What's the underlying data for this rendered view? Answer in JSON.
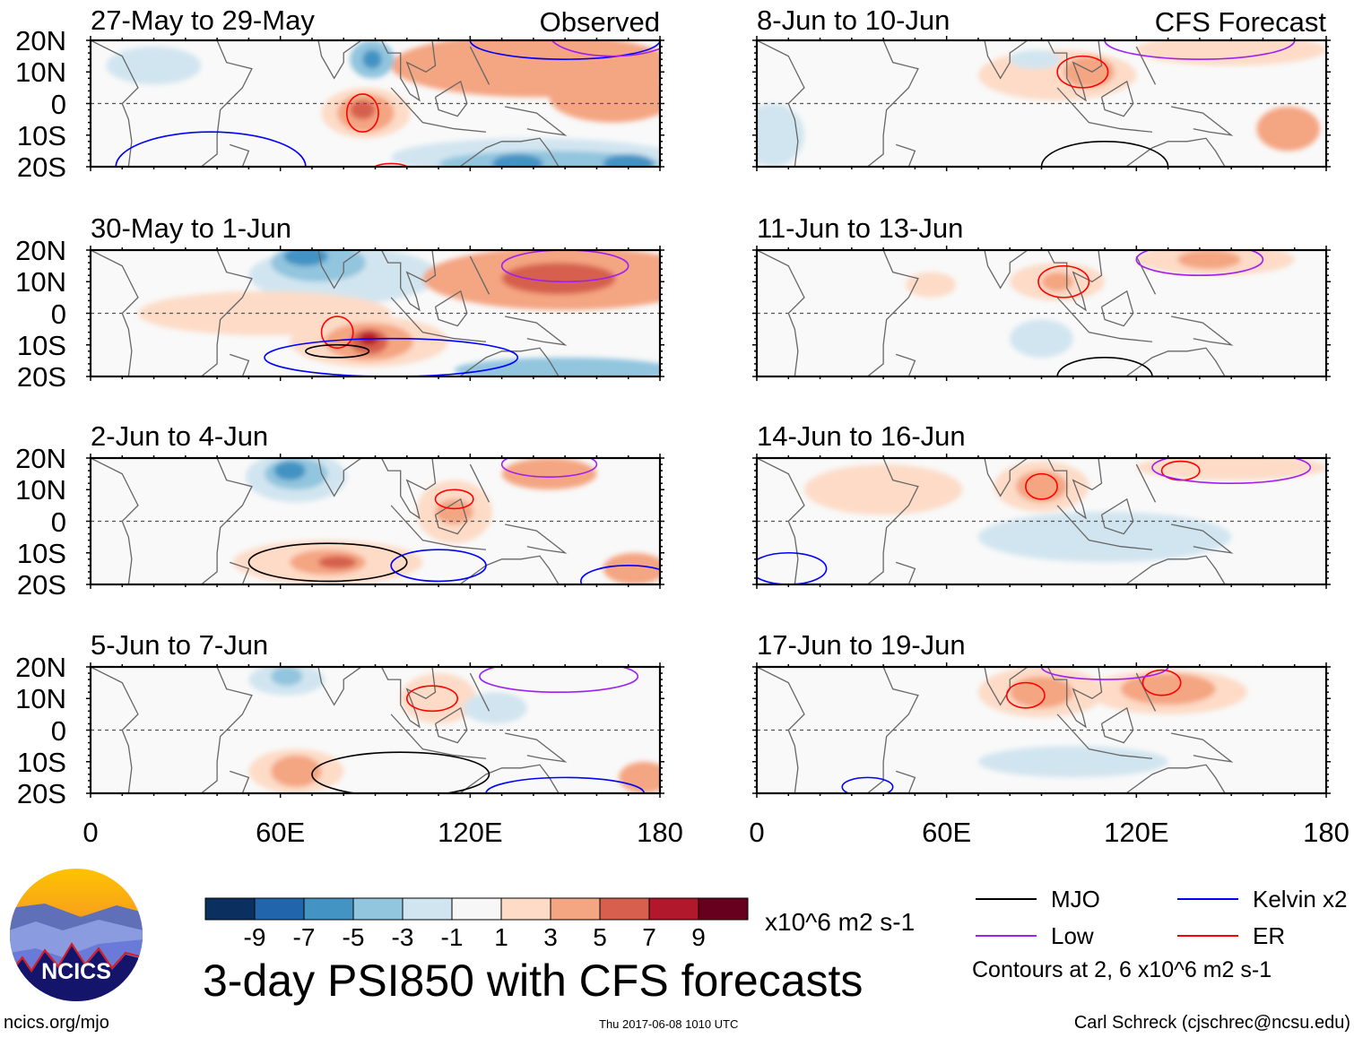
{
  "chart_data": {
    "type": "heatmap",
    "title": "3-day PSI850 with CFS forecasts",
    "units": "x10^6 m2 s-1",
    "lon_range": [
      0,
      180
    ],
    "lat_range": [
      -20,
      20
    ],
    "xticks": [
      "0",
      "60E",
      "120E",
      "180"
    ],
    "yticks": [
      "20N",
      "10N",
      "0",
      "10S",
      "20S"
    ],
    "colorbar": {
      "labels": [
        "-9",
        "-7",
        "-5",
        "-3",
        "-1",
        "1",
        "3",
        "5",
        "7",
        "9"
      ],
      "colors": [
        "#0b2f5e",
        "#2166ac",
        "#4393c3",
        "#92c5de",
        "#d1e5f0",
        "#f7f7f7",
        "#fddbc7",
        "#f4a582",
        "#d6604d",
        "#b2182b",
        "#67001f"
      ]
    },
    "legend": [
      {
        "label": "MJO",
        "color": "#000000"
      },
      {
        "label": "Kelvin x2",
        "color": "#0000ff"
      },
      {
        "label": "Low",
        "color": "#a020f0"
      },
      {
        "label": "ER",
        "color": "#ff0000"
      }
    ],
    "contour_note": "Contours at 2, 6 x10^6 m2 s-1",
    "group_labels": {
      "observed": "Observed",
      "forecast": "CFS Forecast"
    },
    "panels": [
      {
        "title": "27-May to 29-May",
        "group": "observed",
        "anomalies": [
          {
            "lon": 20,
            "lat": 12,
            "rlon": 15,
            "rlat": 6,
            "v": -1
          },
          {
            "lon": 140,
            "lat": 12,
            "rlon": 45,
            "rlat": 10,
            "v": 3
          },
          {
            "lon": 165,
            "lat": 2,
            "rlon": 20,
            "rlat": 8,
            "v": 3
          },
          {
            "lon": 140,
            "lat": -17,
            "rlon": 45,
            "rlat": 6,
            "v": -1
          },
          {
            "lon": 145,
            "lat": -19,
            "rlon": 35,
            "rlat": 4,
            "v": -3
          },
          {
            "lon": 135,
            "lat": -19,
            "rlon": 8,
            "rlat": 3,
            "v": -5
          },
          {
            "lon": 170,
            "lat": -19,
            "rlon": 8,
            "rlat": 3,
            "v": -5
          },
          {
            "lon": 87,
            "lat": -3,
            "rlon": 14,
            "rlat": 8,
            "v": 1
          },
          {
            "lon": 87,
            "lat": -3,
            "rlon": 9,
            "rlat": 6,
            "v": 3
          },
          {
            "lon": 86,
            "lat": -2,
            "rlon": 4,
            "rlat": 3,
            "v": 5
          },
          {
            "lon": 89,
            "lat": 14,
            "rlon": 7,
            "rlat": 6,
            "v": -3
          },
          {
            "lon": 89,
            "lat": 14,
            "rlon": 3,
            "rlat": 3,
            "v": -5
          }
        ],
        "contours": [
          {
            "type": "Kelvin",
            "lon": 38,
            "lat": -20,
            "rlon": 30,
            "rlat": 11
          },
          {
            "type": "ER",
            "lon": 86,
            "lat": -3,
            "rlon": 5,
            "rlat": 6
          },
          {
            "type": "Kelvin",
            "lon": 150,
            "lat": 20,
            "rlon": 30,
            "rlat": 6
          },
          {
            "type": "Low",
            "lon": 165,
            "lat": 22,
            "rlon": 20,
            "rlat": 7
          },
          {
            "type": "ER",
            "lon": 95,
            "lat": -23,
            "rlon": 8,
            "rlat": 4
          }
        ]
      },
      {
        "title": "30-May to 1-Jun",
        "group": "observed",
        "anomalies": [
          {
            "lon": 80,
            "lat": 12,
            "rlon": 30,
            "rlat": 9,
            "v": -1
          },
          {
            "lon": 72,
            "lat": 16,
            "rlon": 15,
            "rlat": 6,
            "v": -3
          },
          {
            "lon": 68,
            "lat": 18,
            "rlon": 7,
            "rlat": 3,
            "v": -5
          },
          {
            "lon": 55,
            "lat": 0,
            "rlon": 40,
            "rlat": 7,
            "v": 1
          },
          {
            "lon": 88,
            "lat": -9,
            "rlon": 25,
            "rlat": 8,
            "v": 1
          },
          {
            "lon": 88,
            "lat": -9,
            "rlon": 14,
            "rlat": 6,
            "v": 3
          },
          {
            "lon": 88,
            "lat": -9,
            "rlon": 6,
            "rlat": 4,
            "v": 5
          },
          {
            "lon": 88,
            "lat": -8,
            "rlon": 3,
            "rlat": 2,
            "v": 7
          },
          {
            "lon": 150,
            "lat": 11,
            "rlon": 45,
            "rlat": 10,
            "v": 3
          },
          {
            "lon": 148,
            "lat": 11,
            "rlon": 18,
            "rlat": 5,
            "v": 5
          },
          {
            "lon": 150,
            "lat": -18,
            "rlon": 35,
            "rlat": 4,
            "v": -3
          }
        ],
        "contours": [
          {
            "type": "ER",
            "lon": 78,
            "lat": -6,
            "rlon": 5,
            "rlat": 5
          },
          {
            "type": "MJO",
            "lon": 78,
            "lat": -12,
            "rlon": 10,
            "rlat": 2
          },
          {
            "type": "Kelvin",
            "lon": 95,
            "lat": -14,
            "rlon": 40,
            "rlat": 6
          },
          {
            "type": "Low",
            "lon": 150,
            "lat": 15,
            "rlon": 20,
            "rlat": 5
          }
        ]
      },
      {
        "title": "2-Jun to 4-Jun",
        "group": "observed",
        "anomalies": [
          {
            "lon": 65,
            "lat": 14,
            "rlon": 16,
            "rlat": 8,
            "v": -1
          },
          {
            "lon": 65,
            "lat": 15,
            "rlon": 10,
            "rlat": 5,
            "v": -3
          },
          {
            "lon": 63,
            "lat": 16,
            "rlon": 5,
            "rlat": 3,
            "v": -5
          },
          {
            "lon": 75,
            "lat": -13,
            "rlon": 30,
            "rlat": 7,
            "v": 1
          },
          {
            "lon": 75,
            "lat": -13,
            "rlon": 12,
            "rlat": 4,
            "v": 3
          },
          {
            "lon": 78,
            "lat": -13,
            "rlon": 6,
            "rlat": 2,
            "v": 5
          },
          {
            "lon": 115,
            "lat": 3,
            "rlon": 12,
            "rlat": 10,
            "v": 1
          },
          {
            "lon": 115,
            "lat": 3,
            "rlon": 6,
            "rlat": 4,
            "v": 3
          },
          {
            "lon": 145,
            "lat": 15,
            "rlon": 15,
            "rlat": 5,
            "v": 3
          },
          {
            "lon": 172,
            "lat": -15,
            "rlon": 10,
            "rlat": 5,
            "v": 3
          }
        ],
        "contours": [
          {
            "type": "MJO",
            "lon": 75,
            "lat": -13,
            "rlon": 25,
            "rlat": 6
          },
          {
            "type": "ER",
            "lon": 115,
            "lat": 7,
            "rlon": 6,
            "rlat": 3
          },
          {
            "type": "Low",
            "lon": 145,
            "lat": 18,
            "rlon": 15,
            "rlat": 4
          },
          {
            "type": "Kelvin",
            "lon": 170,
            "lat": -19,
            "rlon": 15,
            "rlat": 5
          },
          {
            "type": "Kelvin",
            "lon": 110,
            "lat": -14,
            "rlon": 15,
            "rlat": 5
          }
        ]
      },
      {
        "title": "5-Jun to 7-Jun",
        "group": "observed",
        "anomalies": [
          {
            "lon": 62,
            "lat": 16,
            "rlon": 12,
            "rlat": 5,
            "v": -1
          },
          {
            "lon": 62,
            "lat": 17,
            "rlon": 5,
            "rlat": 3,
            "v": -3
          },
          {
            "lon": 65,
            "lat": -13,
            "rlon": 15,
            "rlat": 7,
            "v": 1
          },
          {
            "lon": 65,
            "lat": -13,
            "rlon": 8,
            "rlat": 5,
            "v": 3
          },
          {
            "lon": 110,
            "lat": 10,
            "rlon": 12,
            "rlat": 8,
            "v": 1
          },
          {
            "lon": 128,
            "lat": 7,
            "rlon": 10,
            "rlat": 5,
            "v": -1
          },
          {
            "lon": 175,
            "lat": -15,
            "rlon": 8,
            "rlat": 5,
            "v": 3
          }
        ],
        "contours": [
          {
            "type": "MJO",
            "lon": 98,
            "lat": -14,
            "rlon": 28,
            "rlat": 7
          },
          {
            "type": "ER",
            "lon": 108,
            "lat": 10,
            "rlon": 8,
            "rlat": 4
          },
          {
            "type": "Low",
            "lon": 148,
            "lat": 17,
            "rlon": 25,
            "rlat": 5
          },
          {
            "type": "Kelvin",
            "lon": 150,
            "lat": -20,
            "rlon": 25,
            "rlat": 5
          }
        ]
      },
      {
        "title": "8-Jun to 10-Jun",
        "group": "forecast",
        "anomalies": [
          {
            "lon": 95,
            "lat": 9,
            "rlon": 25,
            "rlat": 8,
            "v": 1
          },
          {
            "lon": 105,
            "lat": 10,
            "rlon": 8,
            "rlat": 5,
            "v": 3
          },
          {
            "lon": 88,
            "lat": 14,
            "rlon": 8,
            "rlat": 3,
            "v": -1
          },
          {
            "lon": 150,
            "lat": 17,
            "rlon": 30,
            "rlat": 5,
            "v": 1
          },
          {
            "lon": 168,
            "lat": -8,
            "rlon": 10,
            "rlat": 7,
            "v": 3
          },
          {
            "lon": 5,
            "lat": -10,
            "rlon": 10,
            "rlat": 10,
            "v": -1
          }
        ],
        "contours": [
          {
            "type": "MJO",
            "lon": 110,
            "lat": -20,
            "rlon": 20,
            "rlat": 8
          },
          {
            "type": "ER",
            "lon": 103,
            "lat": 10,
            "rlon": 8,
            "rlat": 5
          },
          {
            "type": "Low",
            "lon": 140,
            "lat": 20,
            "rlon": 30,
            "rlat": 6
          }
        ]
      },
      {
        "title": "11-Jun to 13-Jun",
        "group": "forecast",
        "anomalies": [
          {
            "lon": 55,
            "lat": 9,
            "rlon": 8,
            "rlat": 4,
            "v": 1
          },
          {
            "lon": 95,
            "lat": 10,
            "rlon": 15,
            "rlat": 6,
            "v": 1
          },
          {
            "lon": 95,
            "lat": 10,
            "rlon": 5,
            "rlat": 3,
            "v": 3
          },
          {
            "lon": 145,
            "lat": 17,
            "rlon": 25,
            "rlat": 5,
            "v": 1
          },
          {
            "lon": 143,
            "lat": 17,
            "rlon": 10,
            "rlat": 3,
            "v": 3
          },
          {
            "lon": 90,
            "lat": -8,
            "rlon": 10,
            "rlat": 6,
            "v": -1
          }
        ],
        "contours": [
          {
            "type": "MJO",
            "lon": 110,
            "lat": -20,
            "rlon": 15,
            "rlat": 6
          },
          {
            "type": "ER",
            "lon": 97,
            "lat": 10,
            "rlon": 8,
            "rlat": 5
          },
          {
            "type": "Low",
            "lon": 140,
            "lat": 17,
            "rlon": 20,
            "rlat": 5
          }
        ]
      },
      {
        "title": "14-Jun to 16-Jun",
        "group": "forecast",
        "anomalies": [
          {
            "lon": 40,
            "lat": 10,
            "rlon": 25,
            "rlat": 8,
            "v": 1
          },
          {
            "lon": 90,
            "lat": 11,
            "rlon": 15,
            "rlat": 8,
            "v": 1
          },
          {
            "lon": 90,
            "lat": 11,
            "rlon": 8,
            "rlat": 5,
            "v": 3
          },
          {
            "lon": 150,
            "lat": 17,
            "rlon": 30,
            "rlat": 4,
            "v": 1
          },
          {
            "lon": 110,
            "lat": -5,
            "rlon": 40,
            "rlat": 8,
            "v": -1
          }
        ],
        "contours": [
          {
            "type": "ER",
            "lon": 90,
            "lat": 11,
            "rlon": 5,
            "rlat": 4
          },
          {
            "type": "ER",
            "lon": 134,
            "lat": 16,
            "rlon": 6,
            "rlat": 3
          },
          {
            "type": "Low",
            "lon": 150,
            "lat": 17,
            "rlon": 25,
            "rlat": 5
          },
          {
            "type": "Kelvin",
            "lon": 10,
            "lat": -15,
            "rlon": 12,
            "rlat": 5
          }
        ]
      },
      {
        "title": "17-Jun to 19-Jun",
        "group": "forecast",
        "anomalies": [
          {
            "lon": 90,
            "lat": 12,
            "rlon": 20,
            "rlat": 8,
            "v": 1
          },
          {
            "lon": 90,
            "lat": 12,
            "rlon": 10,
            "rlat": 5,
            "v": 3
          },
          {
            "lon": 130,
            "lat": 12,
            "rlon": 25,
            "rlat": 7,
            "v": 1
          },
          {
            "lon": 130,
            "lat": 13,
            "rlon": 15,
            "rlat": 5,
            "v": 3
          },
          {
            "lon": 100,
            "lat": -10,
            "rlon": 30,
            "rlat": 5,
            "v": -1
          }
        ],
        "contours": [
          {
            "type": "ER",
            "lon": 85,
            "lat": 11,
            "rlon": 6,
            "rlat": 4
          },
          {
            "type": "ER",
            "lon": 128,
            "lat": 15,
            "rlon": 6,
            "rlat": 4
          },
          {
            "type": "Low",
            "lon": 110,
            "lat": 20,
            "rlon": 20,
            "rlat": 4
          },
          {
            "type": "Kelvin",
            "lon": 35,
            "lat": -18,
            "rlon": 8,
            "rlat": 3
          }
        ]
      }
    ]
  },
  "logo": {
    "text": "NCICS"
  },
  "footer": {
    "url": "ncics.org/mjo",
    "timestamp": "Thu 2017-06-08 1010 UTC",
    "author": "Carl Schreck (cjschrec@ncsu.edu)"
  }
}
